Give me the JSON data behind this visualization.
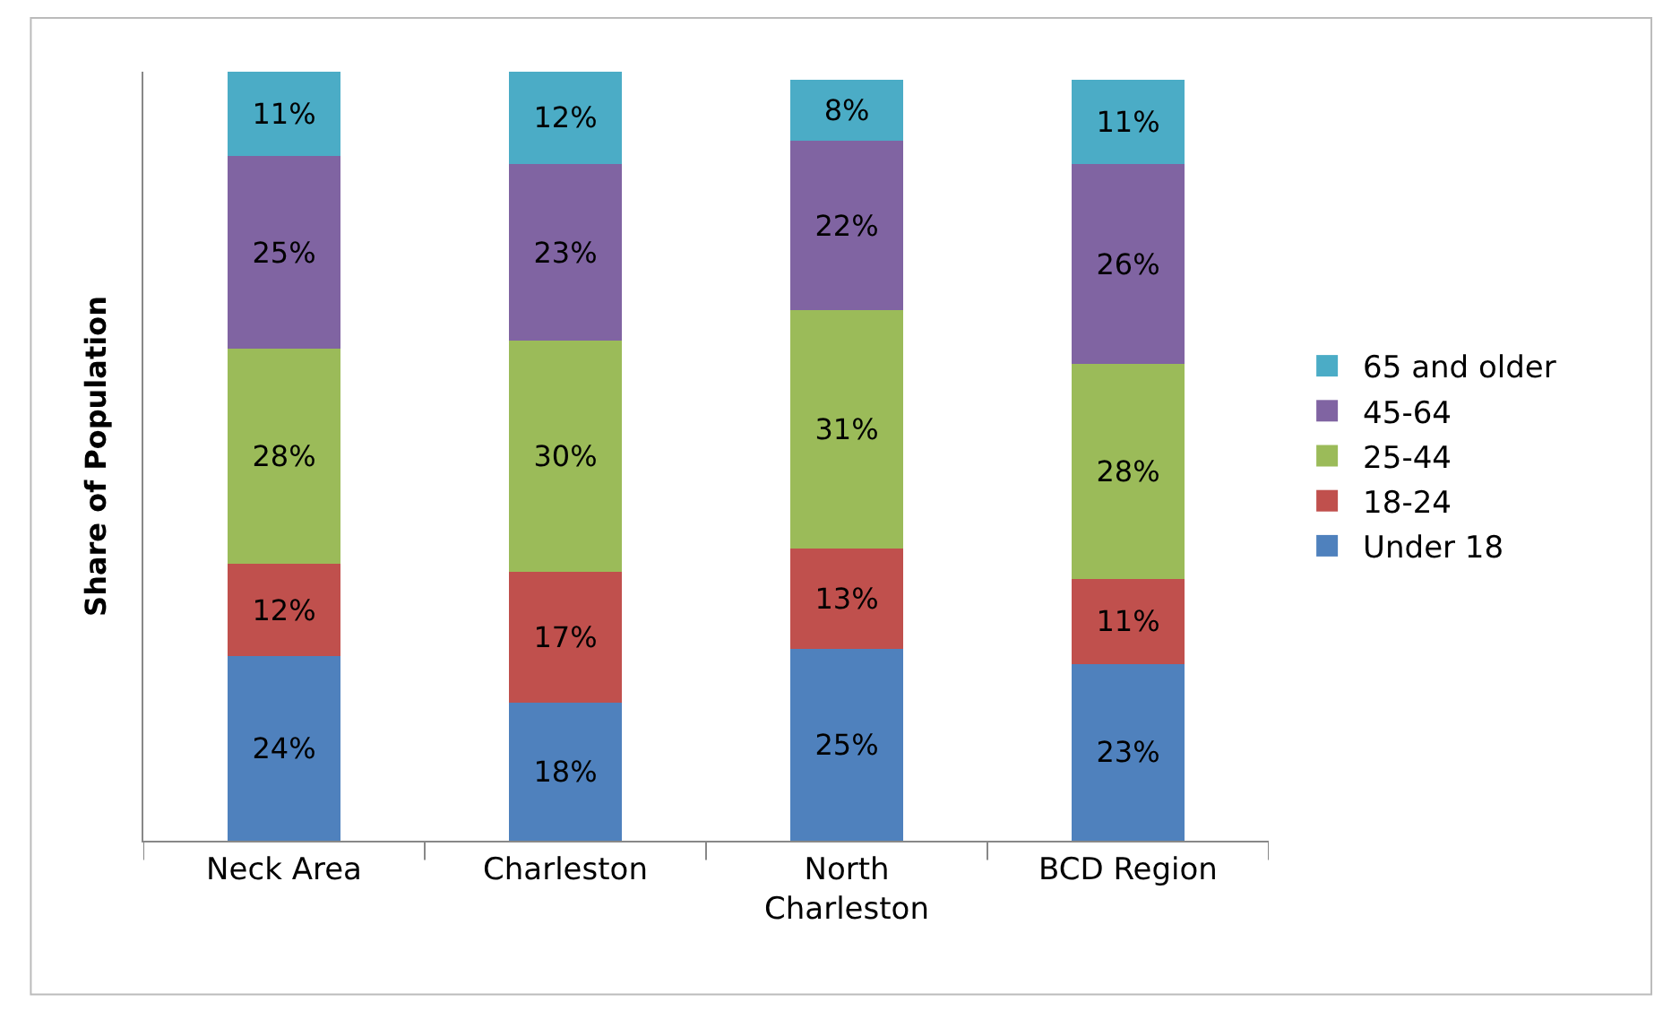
{
  "chart_data": {
    "type": "bar",
    "stacked": true,
    "ylabel": "Share of Population",
    "categories": [
      "Neck Area",
      "Charleston",
      "North Charleston",
      "BCD Region"
    ],
    "series": [
      {
        "name": "Under 18",
        "color": "#4f81bd",
        "values": [
          24,
          18,
          25,
          23
        ],
        "value_labels": [
          "24%",
          "18%",
          "25%",
          "23%"
        ]
      },
      {
        "name": "18-24",
        "color": "#c0504d",
        "values": [
          12,
          17,
          13,
          11
        ],
        "value_labels": [
          "12%",
          "17%",
          "13%",
          "11%"
        ]
      },
      {
        "name": "25-44",
        "color": "#9bbb59",
        "values": [
          28,
          30,
          31,
          28
        ],
        "value_labels": [
          "28%",
          "30%",
          "31%",
          "28%"
        ]
      },
      {
        "name": "45-64",
        "color": "#8064a2",
        "values": [
          25,
          23,
          22,
          26
        ],
        "value_labels": [
          "25%",
          "23%",
          "22%",
          "26%"
        ]
      },
      {
        "name": "65 and older",
        "color": "#4bacc6",
        "values": [
          11,
          12,
          8,
          11
        ],
        "value_labels": [
          "11%",
          "12%",
          "8%",
          "11%"
        ]
      }
    ],
    "ylim": [
      0,
      100
    ],
    "tick_labels": "x",
    "legend": "right"
  }
}
